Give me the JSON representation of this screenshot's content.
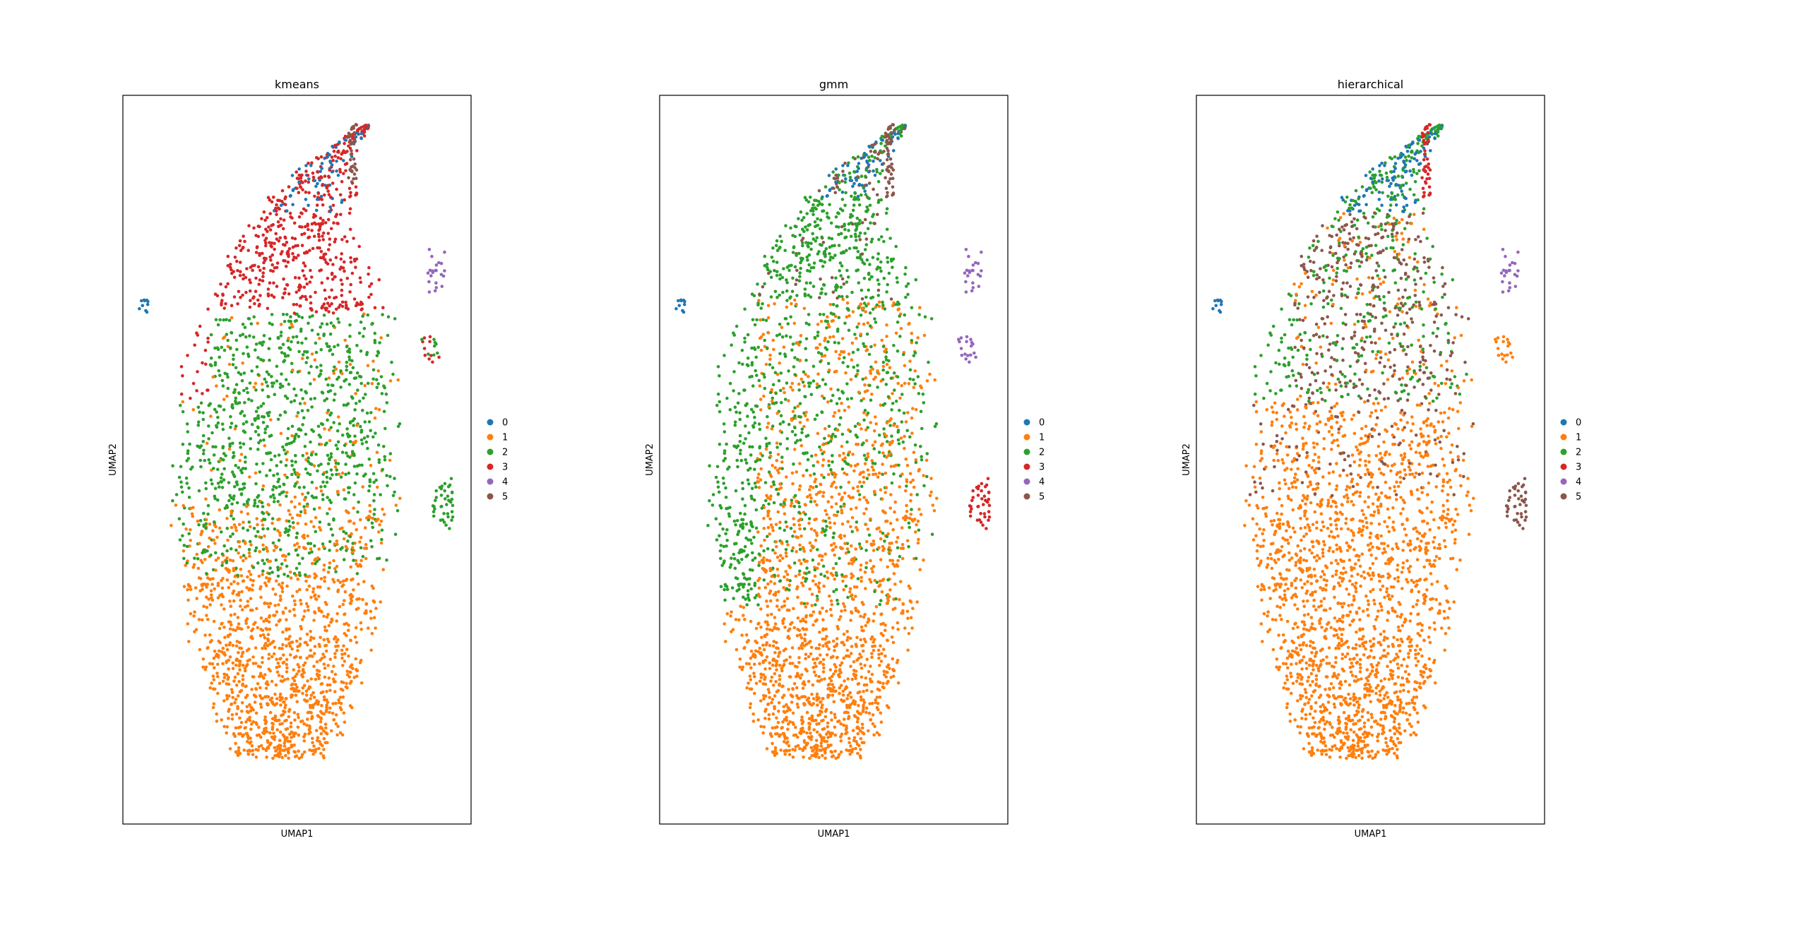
{
  "chart_data": [
    {
      "type": "scatter",
      "title": "kmeans",
      "xlabel": "UMAP1",
      "ylabel": "UMAP2",
      "legend_position": "right",
      "grid": false,
      "legend": [
        "0",
        "1",
        "2",
        "3",
        "4",
        "5"
      ],
      "method": "kmeans"
    },
    {
      "type": "scatter",
      "title": "gmm",
      "xlabel": "UMAP1",
      "ylabel": "UMAP2",
      "legend_position": "right",
      "grid": false,
      "legend": [
        "0",
        "1",
        "2",
        "3",
        "4",
        "5"
      ],
      "method": "gmm"
    },
    {
      "type": "scatter",
      "title": "hierarchical",
      "xlabel": "UMAP1",
      "ylabel": "UMAP2",
      "legend_position": "right",
      "grid": false,
      "legend": [
        "0",
        "1",
        "2",
        "3",
        "4",
        "5"
      ],
      "method": "hierarchical"
    }
  ],
  "colors": {
    "0": "#1f77b4",
    "1": "#ff7f0e",
    "2": "#2ca02c",
    "3": "#d62728",
    "4": "#9467bd",
    "5": "#8c564b"
  }
}
